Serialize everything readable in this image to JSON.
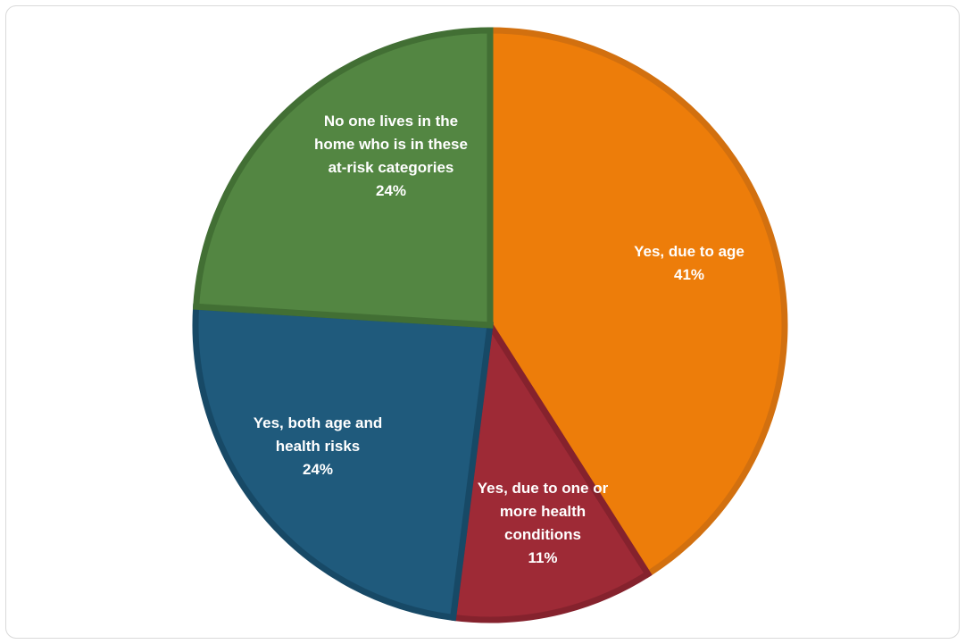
{
  "chart_data": {
    "type": "pie",
    "title": "",
    "slices": [
      {
        "label": [
          "Yes, due to age"
        ],
        "value": 41,
        "value_label": "41%",
        "color": "#ED7D0A",
        "edge": "#D2700F"
      },
      {
        "label": [
          "Yes, due to one or",
          "more health",
          "conditions"
        ],
        "value": 11,
        "value_label": "11%",
        "color": "#9E2A36",
        "edge": "#85222D"
      },
      {
        "label": [
          "Yes, both age and",
          "health risks"
        ],
        "value": 24,
        "value_label": "24%",
        "color": "#1F5A7C",
        "edge": "#174966"
      },
      {
        "label": [
          "No one lives in the",
          "home who is in these",
          "at-risk categories"
        ],
        "value": 24,
        "value_label": "24%",
        "color": "#538642",
        "edge": "#426F34"
      }
    ]
  }
}
